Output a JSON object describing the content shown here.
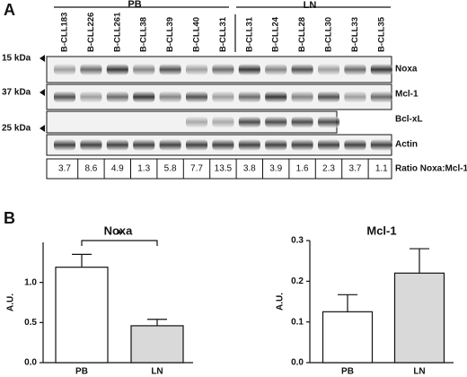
{
  "panel_a": {
    "label": "A",
    "group_labels": [
      "PB",
      "LN"
    ],
    "lanes": [
      "B-CLL183",
      "B-CLL226",
      "B-CLL261",
      "B-CLL38",
      "B-CLL39",
      "B-CLL40",
      "B-CLL31",
      "B-CLL31",
      "B-CLL24",
      "B-CLL28",
      "B-CLL30",
      "B-CLL33",
      "B-CLL35"
    ],
    "markers": [
      "15 kDa",
      "37 kDa",
      "25 kDa"
    ],
    "proteins": [
      "Noxa",
      "Mcl-1",
      "Bcl-xL",
      "Actin"
    ],
    "ratios": [
      3.7,
      8.6,
      4.9,
      1.3,
      5.8,
      7.7,
      13.5,
      3.8,
      3.9,
      1.6,
      2.3,
      3.7,
      1.1
    ],
    "ratio_label": "Ratio Noxa:Mcl-1"
  },
  "panel_b": {
    "label": "B"
  },
  "chart_data": [
    {
      "type": "bar",
      "title": "Noxa",
      "y_label": "A.U.",
      "categories": [
        "PB",
        "LN"
      ],
      "values": [
        1.19,
        0.46
      ],
      "errors": [
        0.16,
        0.08
      ],
      "colors": [
        "#ffffff",
        "#d9d9d9"
      ],
      "ylim": [
        0,
        1.5
      ],
      "yticks": [
        {
          "value": 0,
          "label": "0.0"
        },
        {
          "value": 0.5,
          "label": "0.5"
        },
        {
          "value": 1,
          "label": "1.0"
        }
      ],
      "annotation": "*"
    },
    {
      "type": "bar",
      "title": "Mcl-1",
      "y_label": "A.U.",
      "categories": [
        "PB",
        "LN"
      ],
      "values": [
        0.125,
        0.22
      ],
      "errors": [
        0.042,
        0.06
      ],
      "colors": [
        "#ffffff",
        "#d9d9d9"
      ],
      "ylim": [
        0,
        0.3
      ],
      "yticks": [
        {
          "value": 0,
          "label": "0.0"
        },
        {
          "value": 0.1,
          "label": "0.1"
        },
        {
          "value": 0.2,
          "label": "0.2"
        },
        {
          "value": 0.3,
          "label": "0.3"
        }
      ]
    }
  ]
}
